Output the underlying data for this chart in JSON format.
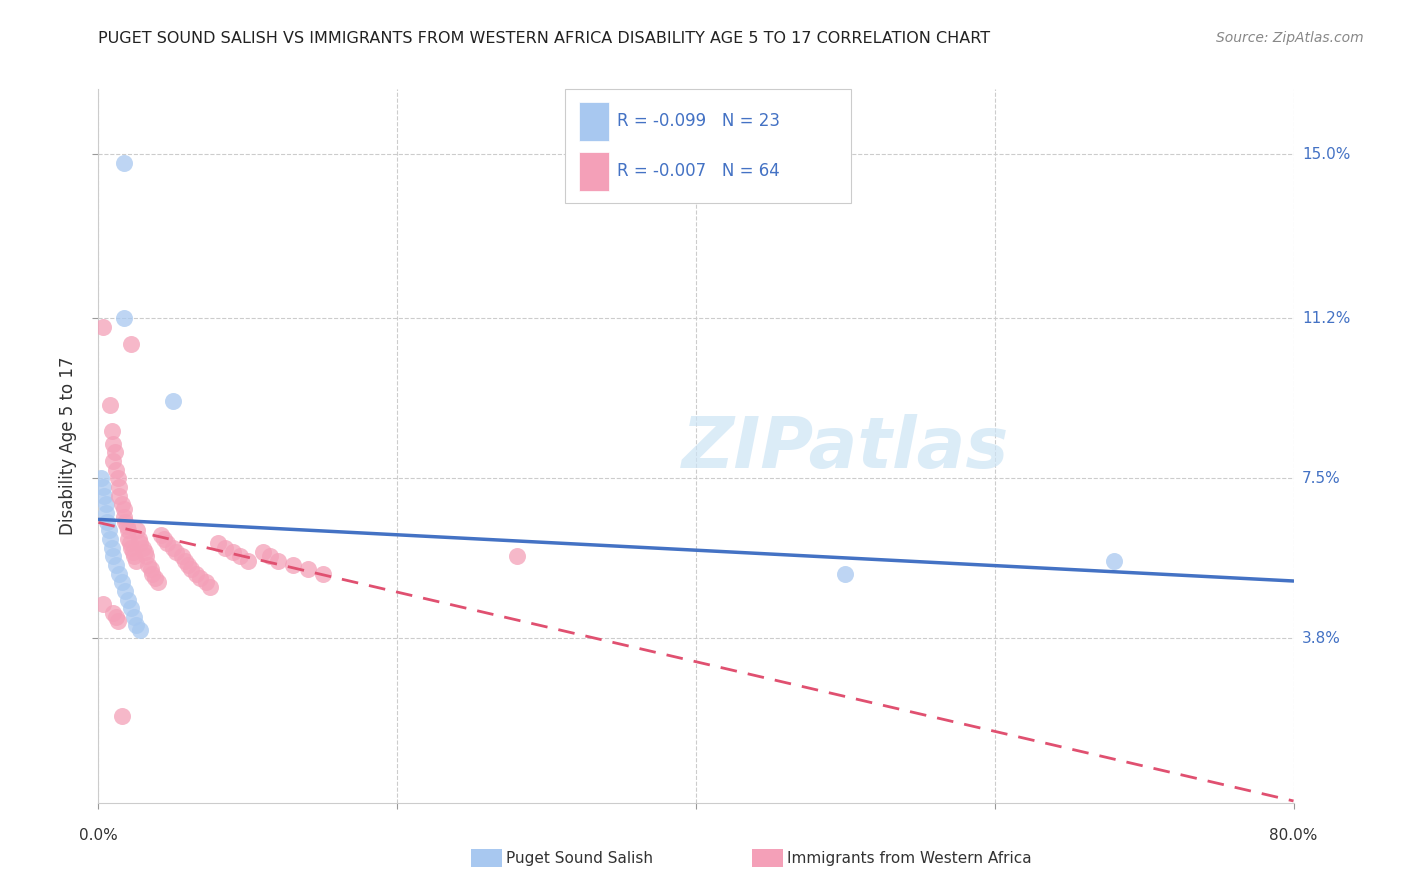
{
  "title": "PUGET SOUND SALISH VS IMMIGRANTS FROM WESTERN AFRICA DISABILITY AGE 5 TO 17 CORRELATION CHART",
  "source": "Source: ZipAtlas.com",
  "ylabel": "Disability Age 5 to 17",
  "xlim": [
    0.0,
    0.8
  ],
  "ylim": [
    0.0,
    0.165
  ],
  "ytick_vals": [
    0.038,
    0.075,
    0.112,
    0.15
  ],
  "ytick_labels": [
    "3.8%",
    "7.5%",
    "11.2%",
    "15.0%"
  ],
  "xtick_vals": [
    0.0,
    0.2,
    0.4,
    0.6,
    0.8
  ],
  "xtick_labels": [
    "0.0%",
    "",
    "",
    "",
    "80.0%"
  ],
  "legend_r1": "-0.099",
  "legend_n1": "23",
  "legend_r2": "-0.007",
  "legend_n2": "64",
  "color_blue": "#a8c8f0",
  "color_pink": "#f4a0b8",
  "line_color_blue": "#4472c4",
  "line_color_pink": "#e05070",
  "watermark_color": "#cce4f5",
  "blue_x": [
    0.017,
    0.017,
    0.05,
    0.003,
    0.003,
    0.004,
    0.006,
    0.007,
    0.005,
    0.004,
    0.006,
    0.007,
    0.01,
    0.008,
    0.009,
    0.012,
    0.015,
    0.017,
    0.024,
    0.024,
    0.025,
    0.5,
    0.68
  ],
  "blue_y": [
    0.148,
    0.112,
    0.093,
    0.075,
    0.073,
    0.071,
    0.069,
    0.068,
    0.066,
    0.064,
    0.062,
    0.06,
    0.058,
    0.056,
    0.054,
    0.052,
    0.05,
    0.048,
    0.046,
    0.044,
    0.042,
    0.053,
    0.056
  ],
  "pink_x": [
    0.003,
    0.021,
    0.008,
    0.008,
    0.009,
    0.01,
    0.011,
    0.01,
    0.012,
    0.013,
    0.014,
    0.014,
    0.016,
    0.017,
    0.017,
    0.018,
    0.019,
    0.02,
    0.02,
    0.021,
    0.022,
    0.023,
    0.024,
    0.025,
    0.026,
    0.026,
    0.027,
    0.028,
    0.03,
    0.031,
    0.032,
    0.033,
    0.035,
    0.036,
    0.038,
    0.04,
    0.042,
    0.044,
    0.046,
    0.05,
    0.052,
    0.056,
    0.058,
    0.06,
    0.062,
    0.065,
    0.068,
    0.072,
    0.075,
    0.08,
    0.085,
    0.09,
    0.095,
    0.1,
    0.11,
    0.115,
    0.12,
    0.13,
    0.28,
    0.003,
    0.01,
    0.012,
    0.013,
    0.016
  ],
  "pink_y": [
    0.11,
    0.106,
    0.092,
    0.085,
    0.082,
    0.08,
    0.079,
    0.077,
    0.075,
    0.073,
    0.072,
    0.07,
    0.069,
    0.068,
    0.066,
    0.065,
    0.064,
    0.063,
    0.061,
    0.06,
    0.059,
    0.058,
    0.057,
    0.056,
    0.063,
    0.062,
    0.061,
    0.06,
    0.059,
    0.058,
    0.057,
    0.055,
    0.054,
    0.053,
    0.052,
    0.051,
    0.05,
    0.063,
    0.062,
    0.061,
    0.059,
    0.058,
    0.057,
    0.056,
    0.055,
    0.054,
    0.053,
    0.052,
    0.051,
    0.05,
    0.049,
    0.055,
    0.054,
    0.053,
    0.058,
    0.057,
    0.055,
    0.058,
    0.057,
    0.046,
    0.044,
    0.043,
    0.042,
    0.02
  ]
}
